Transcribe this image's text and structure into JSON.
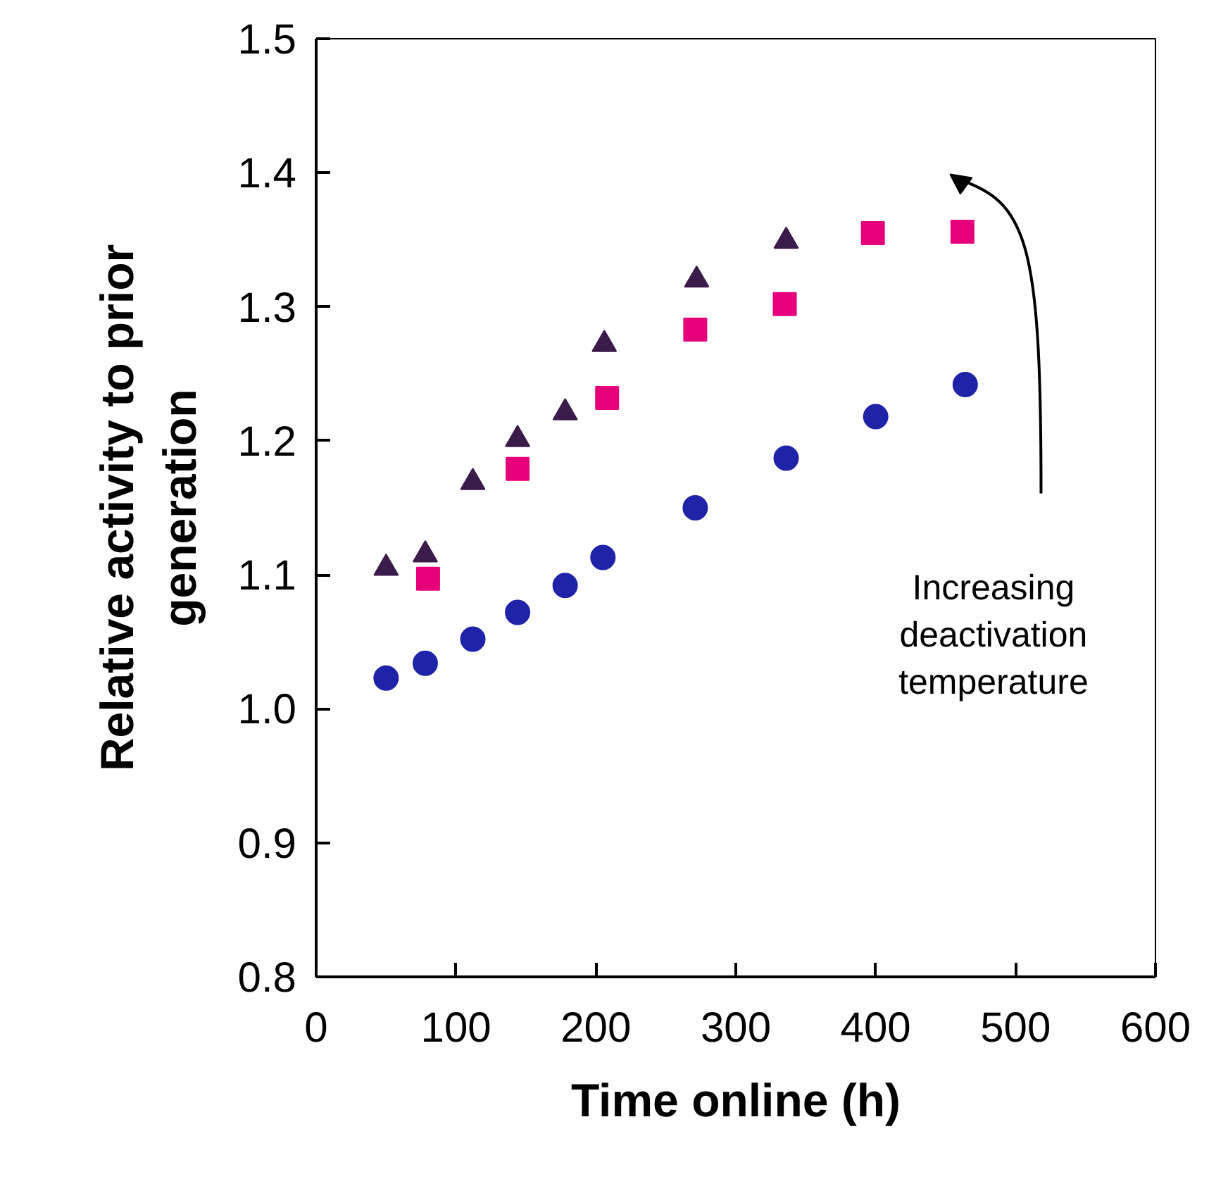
{
  "chart_data": {
    "type": "scatter",
    "xlabel": "Time online (h)",
    "ylabel": "Relative activity to prior\ngeneration",
    "xlim": [
      0,
      600
    ],
    "xticks": [
      0,
      100,
      200,
      300,
      400,
      500,
      600
    ],
    "ylim": [
      0.8,
      1.5
    ],
    "yticks": [
      {
        "value": 0.8,
        "label": "0.8"
      },
      {
        "value": 0.9,
        "label": "0.9"
      },
      {
        "value": 1.0,
        "label": "1.0"
      },
      {
        "value": 1.1,
        "label": "1.1"
      },
      {
        "value": 1.2,
        "label": "1.2"
      },
      {
        "value": 1.3,
        "label": "1.3"
      },
      {
        "value": 1.4,
        "label": "1.4"
      },
      {
        "value": 1.5,
        "label": "1.5"
      }
    ],
    "grid": false,
    "series": [
      {
        "color": "#1f23a8",
        "marker": "circle",
        "x": [
          50,
          78,
          112,
          144,
          178,
          205,
          271,
          336,
          400,
          464
        ],
        "values": [
          1.023,
          1.034,
          1.052,
          1.072,
          1.092,
          1.113,
          1.15,
          1.187,
          1.218,
          1.242
        ]
      },
      {
        "color": "#e6007a",
        "marker": "square",
        "x": [
          80,
          144,
          208,
          271,
          335,
          398,
          462
        ],
        "values": [
          1.097,
          1.179,
          1.232,
          1.283,
          1.302,
          1.355,
          1.356
        ]
      },
      {
        "color": "#3b1b4a",
        "marker": "triangle",
        "x": [
          50,
          78,
          112,
          144,
          178,
          206,
          272,
          336
        ],
        "values": [
          1.105,
          1.115,
          1.169,
          1.201,
          1.221,
          1.272,
          1.32,
          1.349
        ]
      }
    ],
    "annotations": [
      "Increasing\ndeactivation\ntemperature"
    ]
  }
}
